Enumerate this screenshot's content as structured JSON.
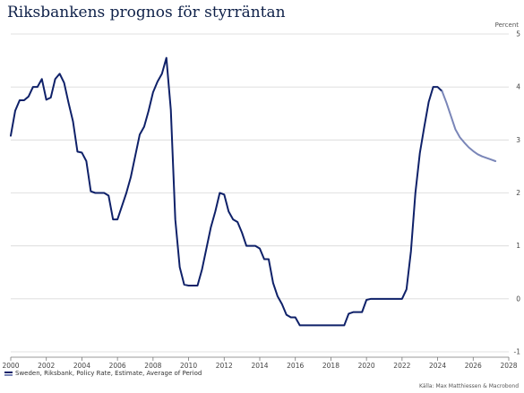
{
  "chart_data": {
    "type": "line",
    "title": "Riksbankens prognos för styrräntan",
    "unit_label": "Percent",
    "source": "Källa: Max Matthiessen & Macrobond",
    "legend": "Sweden, Riksbank, Policy Rate, Estimate, Average of Period",
    "xlim": [
      2000,
      2028
    ],
    "ylim": [
      -1,
      5
    ],
    "x_ticks": [
      "2000",
      "2002",
      "2004",
      "2006",
      "2008",
      "2010",
      "2012",
      "2014",
      "2016",
      "2018",
      "2020",
      "2022",
      "2024",
      "2026",
      "2028"
    ],
    "y_ticks": [
      "-1",
      "0",
      "1",
      "2",
      "3",
      "4",
      "5"
    ],
    "grid": true,
    "series": [
      {
        "color": "#0f2169",
        "points": [
          [
            2000.0,
            3.08
          ],
          [
            2000.25,
            3.55
          ],
          [
            2000.5,
            3.75
          ],
          [
            2000.75,
            3.75
          ],
          [
            2001.0,
            3.82
          ],
          [
            2001.25,
            4.0
          ],
          [
            2001.5,
            4.0
          ],
          [
            2001.75,
            4.15
          ],
          [
            2002.0,
            3.76
          ],
          [
            2002.25,
            3.8
          ],
          [
            2002.5,
            4.15
          ],
          [
            2002.75,
            4.25
          ],
          [
            2003.0,
            4.08
          ],
          [
            2003.25,
            3.7
          ],
          [
            2003.5,
            3.35
          ],
          [
            2003.75,
            2.78
          ],
          [
            2004.0,
            2.76
          ],
          [
            2004.25,
            2.6
          ],
          [
            2004.5,
            2.03
          ],
          [
            2004.75,
            2.0
          ],
          [
            2005.0,
            2.0
          ],
          [
            2005.25,
            2.0
          ],
          [
            2005.5,
            1.95
          ],
          [
            2005.75,
            1.5
          ],
          [
            2006.0,
            1.5
          ],
          [
            2006.25,
            1.75
          ],
          [
            2006.5,
            2.0
          ],
          [
            2006.75,
            2.3
          ],
          [
            2007.0,
            2.7
          ],
          [
            2007.25,
            3.1
          ],
          [
            2007.5,
            3.25
          ],
          [
            2007.75,
            3.55
          ],
          [
            2008.0,
            3.9
          ],
          [
            2008.25,
            4.1
          ],
          [
            2008.5,
            4.25
          ],
          [
            2008.75,
            4.55
          ],
          [
            2009.0,
            3.57
          ],
          [
            2009.25,
            1.5
          ],
          [
            2009.5,
            0.6
          ],
          [
            2009.75,
            0.27
          ],
          [
            2010.0,
            0.25
          ],
          [
            2010.25,
            0.25
          ],
          [
            2010.5,
            0.25
          ],
          [
            2010.75,
            0.55
          ],
          [
            2011.0,
            0.95
          ],
          [
            2011.25,
            1.35
          ],
          [
            2011.5,
            1.65
          ],
          [
            2011.75,
            2.0
          ],
          [
            2012.0,
            1.97
          ],
          [
            2012.25,
            1.65
          ],
          [
            2012.5,
            1.5
          ],
          [
            2012.75,
            1.45
          ],
          [
            2013.0,
            1.25
          ],
          [
            2013.25,
            1.0
          ],
          [
            2013.5,
            1.0
          ],
          [
            2013.75,
            1.0
          ],
          [
            2014.0,
            0.95
          ],
          [
            2014.25,
            0.75
          ],
          [
            2014.5,
            0.75
          ],
          [
            2014.75,
            0.3
          ],
          [
            2015.0,
            0.05
          ],
          [
            2015.25,
            -0.1
          ],
          [
            2015.5,
            -0.3
          ],
          [
            2015.75,
            -0.35
          ],
          [
            2016.0,
            -0.35
          ],
          [
            2016.25,
            -0.5
          ],
          [
            2016.5,
            -0.5
          ],
          [
            2017.0,
            -0.5
          ],
          [
            2017.5,
            -0.5
          ],
          [
            2018.0,
            -0.5
          ],
          [
            2018.5,
            -0.5
          ],
          [
            2018.75,
            -0.5
          ],
          [
            2019.0,
            -0.28
          ],
          [
            2019.25,
            -0.25
          ],
          [
            2019.5,
            -0.25
          ],
          [
            2019.75,
            -0.25
          ],
          [
            2020.0,
            -0.02
          ],
          [
            2020.25,
            0.0
          ],
          [
            2020.5,
            0.0
          ],
          [
            2021.0,
            0.0
          ],
          [
            2021.5,
            0.0
          ],
          [
            2022.0,
            0.0
          ],
          [
            2022.25,
            0.18
          ],
          [
            2022.5,
            0.9
          ],
          [
            2022.75,
            2.0
          ],
          [
            2023.0,
            2.75
          ],
          [
            2023.25,
            3.25
          ],
          [
            2023.5,
            3.72
          ],
          [
            2023.75,
            4.0
          ],
          [
            2024.0,
            4.0
          ],
          [
            2024.25,
            3.92
          ]
        ]
      },
      {
        "color": "#7a86b8",
        "points": [
          [
            2024.25,
            3.92
          ],
          [
            2024.5,
            3.7
          ],
          [
            2024.75,
            3.45
          ],
          [
            2025.0,
            3.2
          ],
          [
            2025.25,
            3.05
          ],
          [
            2025.5,
            2.95
          ],
          [
            2025.75,
            2.86
          ],
          [
            2026.0,
            2.79
          ],
          [
            2026.25,
            2.73
          ],
          [
            2026.5,
            2.69
          ],
          [
            2026.75,
            2.66
          ],
          [
            2027.0,
            2.63
          ],
          [
            2027.25,
            2.6
          ]
        ]
      }
    ]
  }
}
